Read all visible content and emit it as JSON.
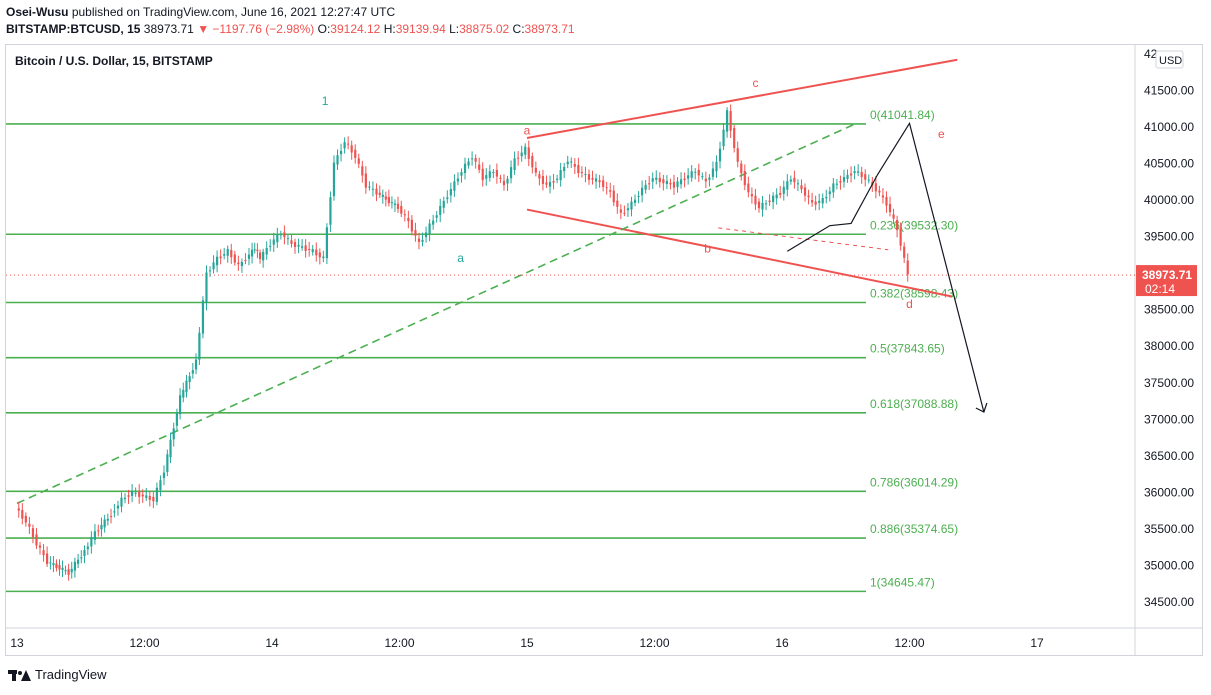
{
  "header": {
    "author": "Osei-Wusu",
    "published": "published on TradingView.com, June 16, 2021 12:27:47 UTC",
    "symbol": "BITSTAMP:BTCUSD, 15",
    "price": "38973.71",
    "change": "▼ −1197.76 (−2.98%)",
    "open_label": "O:",
    "open": "39124.12",
    "high_label": "H:",
    "high": "39139.94",
    "low_label": "L:",
    "low": "38875.02",
    "close_label": "C:",
    "close": "38973.71"
  },
  "chart_data": {
    "type": "candlestick",
    "title": "Bitcoin / U.S. Dollar, 15, BITSTAMP",
    "currency": "USD",
    "ylim": [
      34300,
      42000
    ],
    "y_ticks": [
      34500,
      35000,
      35500,
      36000,
      36500,
      37000,
      37500,
      38000,
      38500,
      39000,
      39500,
      40000,
      40500,
      41000,
      41500
    ],
    "y_tick_labels": [
      "34500.00",
      "35000.00",
      "35500.00",
      "36000.00",
      "36500.00",
      "37000.00",
      "37500.00",
      "38000.00",
      "38500.00",
      "39000.00",
      "39500.00",
      "40000.00",
      "40500.00",
      "41000.00",
      "41500.00"
    ],
    "top_tick_partial": "42",
    "x_tick_labels": [
      "13",
      "12:00",
      "14",
      "12:00",
      "15",
      "12:00",
      "16",
      "12:00",
      "17"
    ],
    "last_price": {
      "value": 38973.71,
      "label": "38973.71",
      "countdown": "02:14"
    },
    "fib_levels": [
      {
        "ratio": "0",
        "value": 41041.84,
        "label": "0(41041.84)"
      },
      {
        "ratio": "0.236",
        "value": 39532.3,
        "label": "0.236(39532.30)"
      },
      {
        "ratio": "0.382",
        "value": 38598.43,
        "label": "0.382(38598.43)"
      },
      {
        "ratio": "0.5",
        "value": 37843.65,
        "label": "0.5(37843.65)"
      },
      {
        "ratio": "0.618",
        "value": 37088.88,
        "label": "0.618(37088.88)"
      },
      {
        "ratio": "0.786",
        "value": 36014.29,
        "label": "0.786(36014.29)"
      },
      {
        "ratio": "0.886",
        "value": 35374.65,
        "label": "0.886(35374.65)"
      },
      {
        "ratio": "1",
        "value": 34645.47,
        "label": "1(34645.47)"
      }
    ],
    "wave_labels": [
      {
        "text": "1",
        "color": "#26a69a",
        "x": "14 05:00",
        "y": 41300
      },
      {
        "text": "a",
        "color": "#26a69a",
        "x": "14 17:45",
        "y": 39150
      },
      {
        "text": "a",
        "color": "#ef5350",
        "x": "15 00:00",
        "y": 40900
      },
      {
        "text": "b",
        "color": "#ef5350",
        "x": "15 17:00",
        "y": 39280
      },
      {
        "text": "c",
        "color": "#ef5350",
        "x": "15 21:30",
        "y": 41550
      },
      {
        "text": "d",
        "color": "#ef5350",
        "x": "16 12:00",
        "y": 38520
      },
      {
        "text": "e",
        "color": "#ef5350",
        "x": "16 15:00",
        "y": 40850
      }
    ],
    "trendlines": [
      {
        "kind": "upper-red",
        "from": [
          "15 00:00",
          40850
        ],
        "to": [
          "16 16:30",
          41920
        ]
      },
      {
        "kind": "lower-red",
        "from": [
          "15 00:00",
          39870
        ],
        "to": [
          "16 16:00",
          38680
        ]
      },
      {
        "kind": "green-dashed",
        "from": [
          "13 00:00",
          35850
        ],
        "to": [
          "16 07:00",
          41050
        ]
      },
      {
        "kind": "red-dashed",
        "from": [
          "15 18:00",
          39620
        ],
        "to": [
          "16 10:00",
          39320
        ]
      }
    ],
    "projection_path": [
      [
        "16 00:30",
        39300
      ],
      [
        "16 04:30",
        39650
      ],
      [
        "16 06:30",
        39680
      ],
      [
        "16 09:00",
        40350
      ],
      [
        "16 12:00",
        41050
      ],
      [
        "16 19:00",
        37100
      ]
    ],
    "series": [
      {
        "name": "BTCUSD 15m",
        "sampled": true,
        "x": [
          "13 00:00",
          "13 01:00",
          "13 02:00",
          "13 03:00",
          "13 05:00",
          "13 06:30",
          "13 07:30",
          "13 09:00",
          "13 10:00",
          "13 11:00",
          "13 12:00",
          "13 13:00",
          "13 14:00",
          "13 15:30",
          "13 17:00",
          "13 18:00",
          "13 19:00",
          "13 20:00",
          "13 21:00",
          "13 22:00",
          "13 22:30",
          "13 23:00",
          "14 00:00",
          "14 01:00",
          "14 02:00",
          "14 03:00",
          "14 04:00",
          "14 05:00",
          "14 06:00",
          "14 07:00",
          "14 08:00",
          "14 09:00",
          "14 10:00",
          "14 12:00",
          "14 13:00",
          "14 14:00",
          "14 15:00",
          "14 16:00",
          "14 17:00",
          "14 18:00",
          "14 19:00",
          "14 20:00",
          "14 21:00",
          "14 22:00",
          "14 23:00",
          "15 00:00",
          "15 01:00",
          "15 02:00",
          "15 03:00",
          "15 04:00",
          "15 05:00",
          "15 06:00",
          "15 07:00",
          "15 08:00",
          "15 09:00",
          "15 10:00",
          "15 11:00",
          "15 12:00",
          "15 13:00",
          "15 14:00",
          "15 15:00",
          "15 16:00",
          "15 17:00",
          "15 18:00",
          "15 19:00",
          "15 20:00",
          "15 21:00",
          "15 22:00",
          "15 23:00",
          "16 00:00",
          "16 01:00",
          "16 02:00",
          "16 03:00",
          "16 04:00",
          "16 05:00",
          "16 06:00",
          "16 07:00",
          "16 08:00",
          "16 09:00",
          "16 10:00",
          "16 11:00",
          "16 12:00"
        ],
        "close": [
          35800,
          35600,
          35300,
          35050,
          34900,
          35200,
          35450,
          35700,
          35900,
          36000,
          35950,
          35900,
          36300,
          37300,
          37800,
          39000,
          39200,
          39300,
          39100,
          39250,
          39350,
          39200,
          39400,
          39550,
          39400,
          39350,
          39300,
          39200,
          40500,
          40800,
          40600,
          40200,
          40100,
          39900,
          39700,
          39400,
          39650,
          39900,
          40150,
          40400,
          40600,
          40300,
          40400,
          40200,
          40550,
          40700,
          40350,
          40200,
          40300,
          40550,
          40400,
          40300,
          40250,
          40100,
          39800,
          39950,
          40150,
          40300,
          40250,
          40200,
          40300,
          40400,
          40250,
          40500,
          41200,
          40500,
          40100,
          39900,
          40000,
          40100,
          40300,
          40150,
          39950,
          40000,
          40200,
          40300,
          40400,
          40300,
          40150,
          39950,
          39600,
          38973.71
        ]
      }
    ]
  }
}
